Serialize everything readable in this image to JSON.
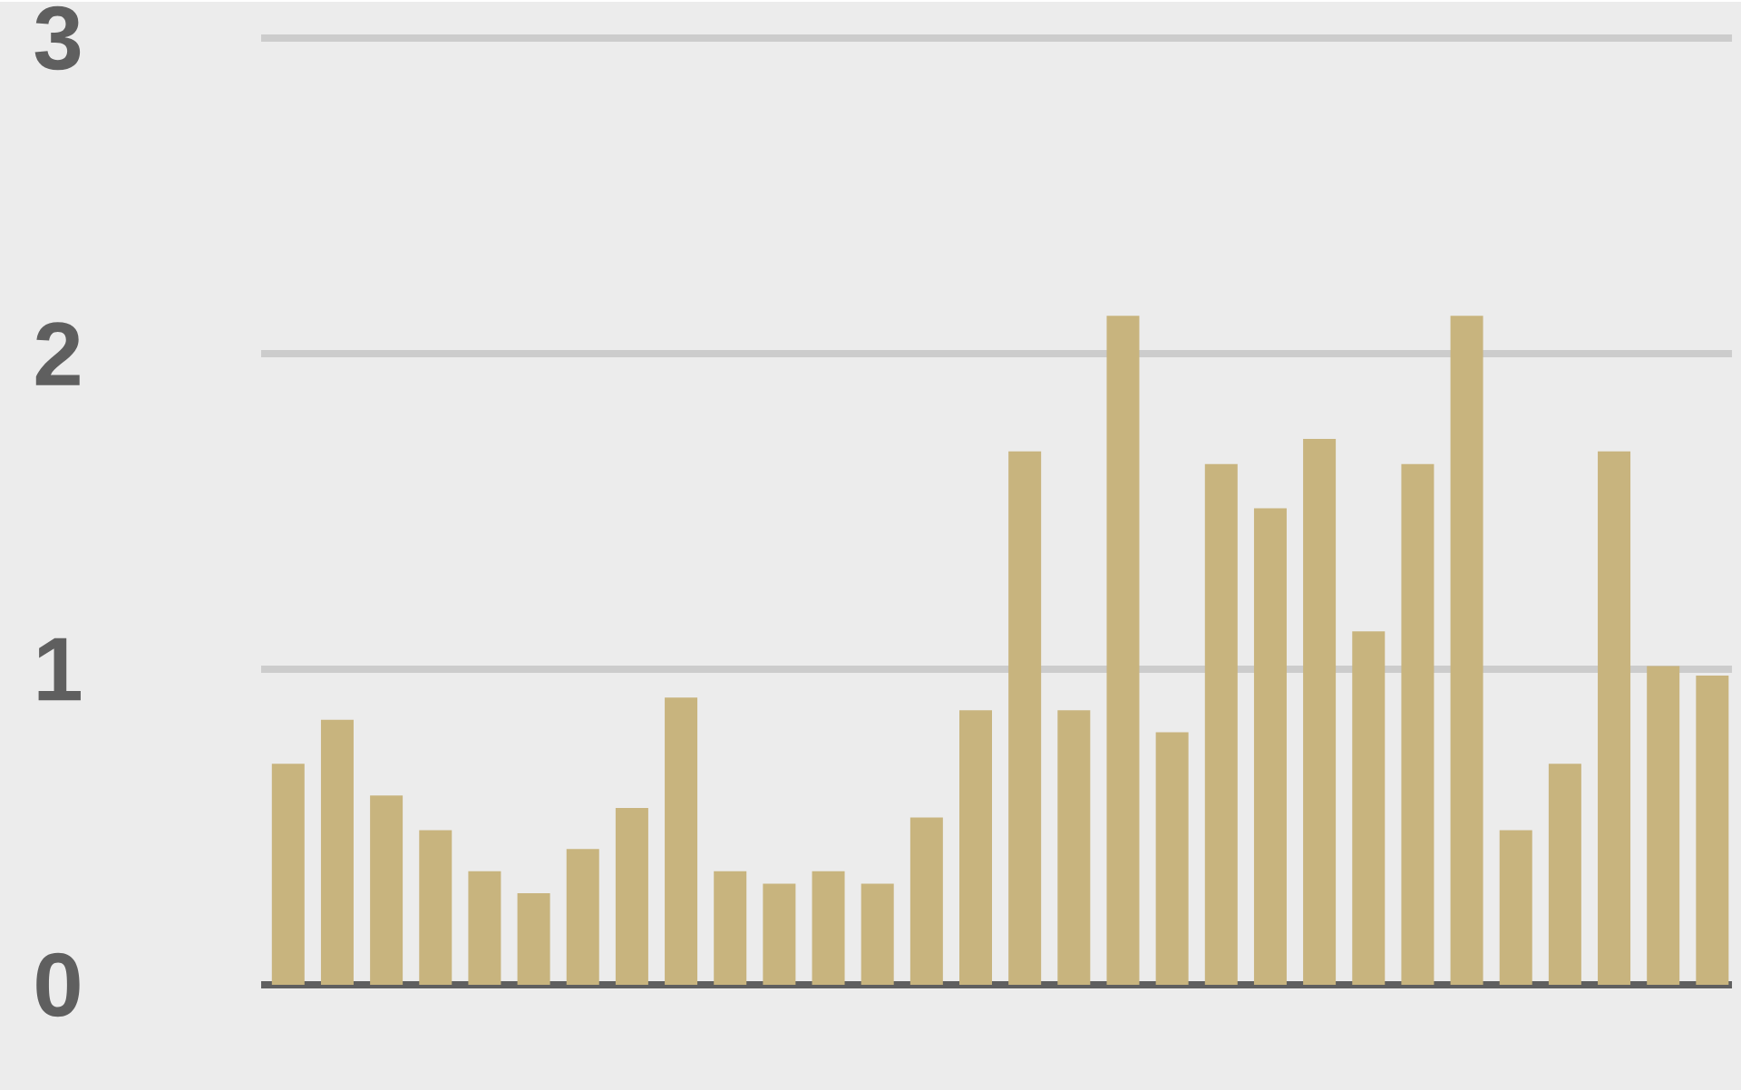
{
  "chart_data": {
    "type": "bar",
    "categories": [
      null,
      null,
      null,
      null,
      null,
      null,
      null,
      null,
      null,
      null,
      null,
      null,
      null,
      null,
      null,
      null,
      null,
      null,
      null,
      null,
      null,
      null,
      null,
      null,
      null,
      null,
      null,
      null,
      null,
      null
    ],
    "values": [
      0.7,
      0.84,
      0.6,
      0.49,
      0.36,
      0.29,
      0.43,
      0.56,
      0.91,
      0.36,
      0.32,
      0.36,
      0.32,
      0.53,
      0.87,
      1.69,
      0.87,
      2.12,
      0.8,
      1.65,
      1.51,
      1.73,
      1.12,
      1.65,
      2.12,
      0.49,
      0.7,
      1.69,
      1.01,
      0.98
    ],
    "color": "#c8b47e",
    "ylim": [
      0,
      3
    ],
    "yticks": [
      0,
      1,
      2,
      3
    ],
    "grid": "y",
    "tick_labels": "y"
  }
}
